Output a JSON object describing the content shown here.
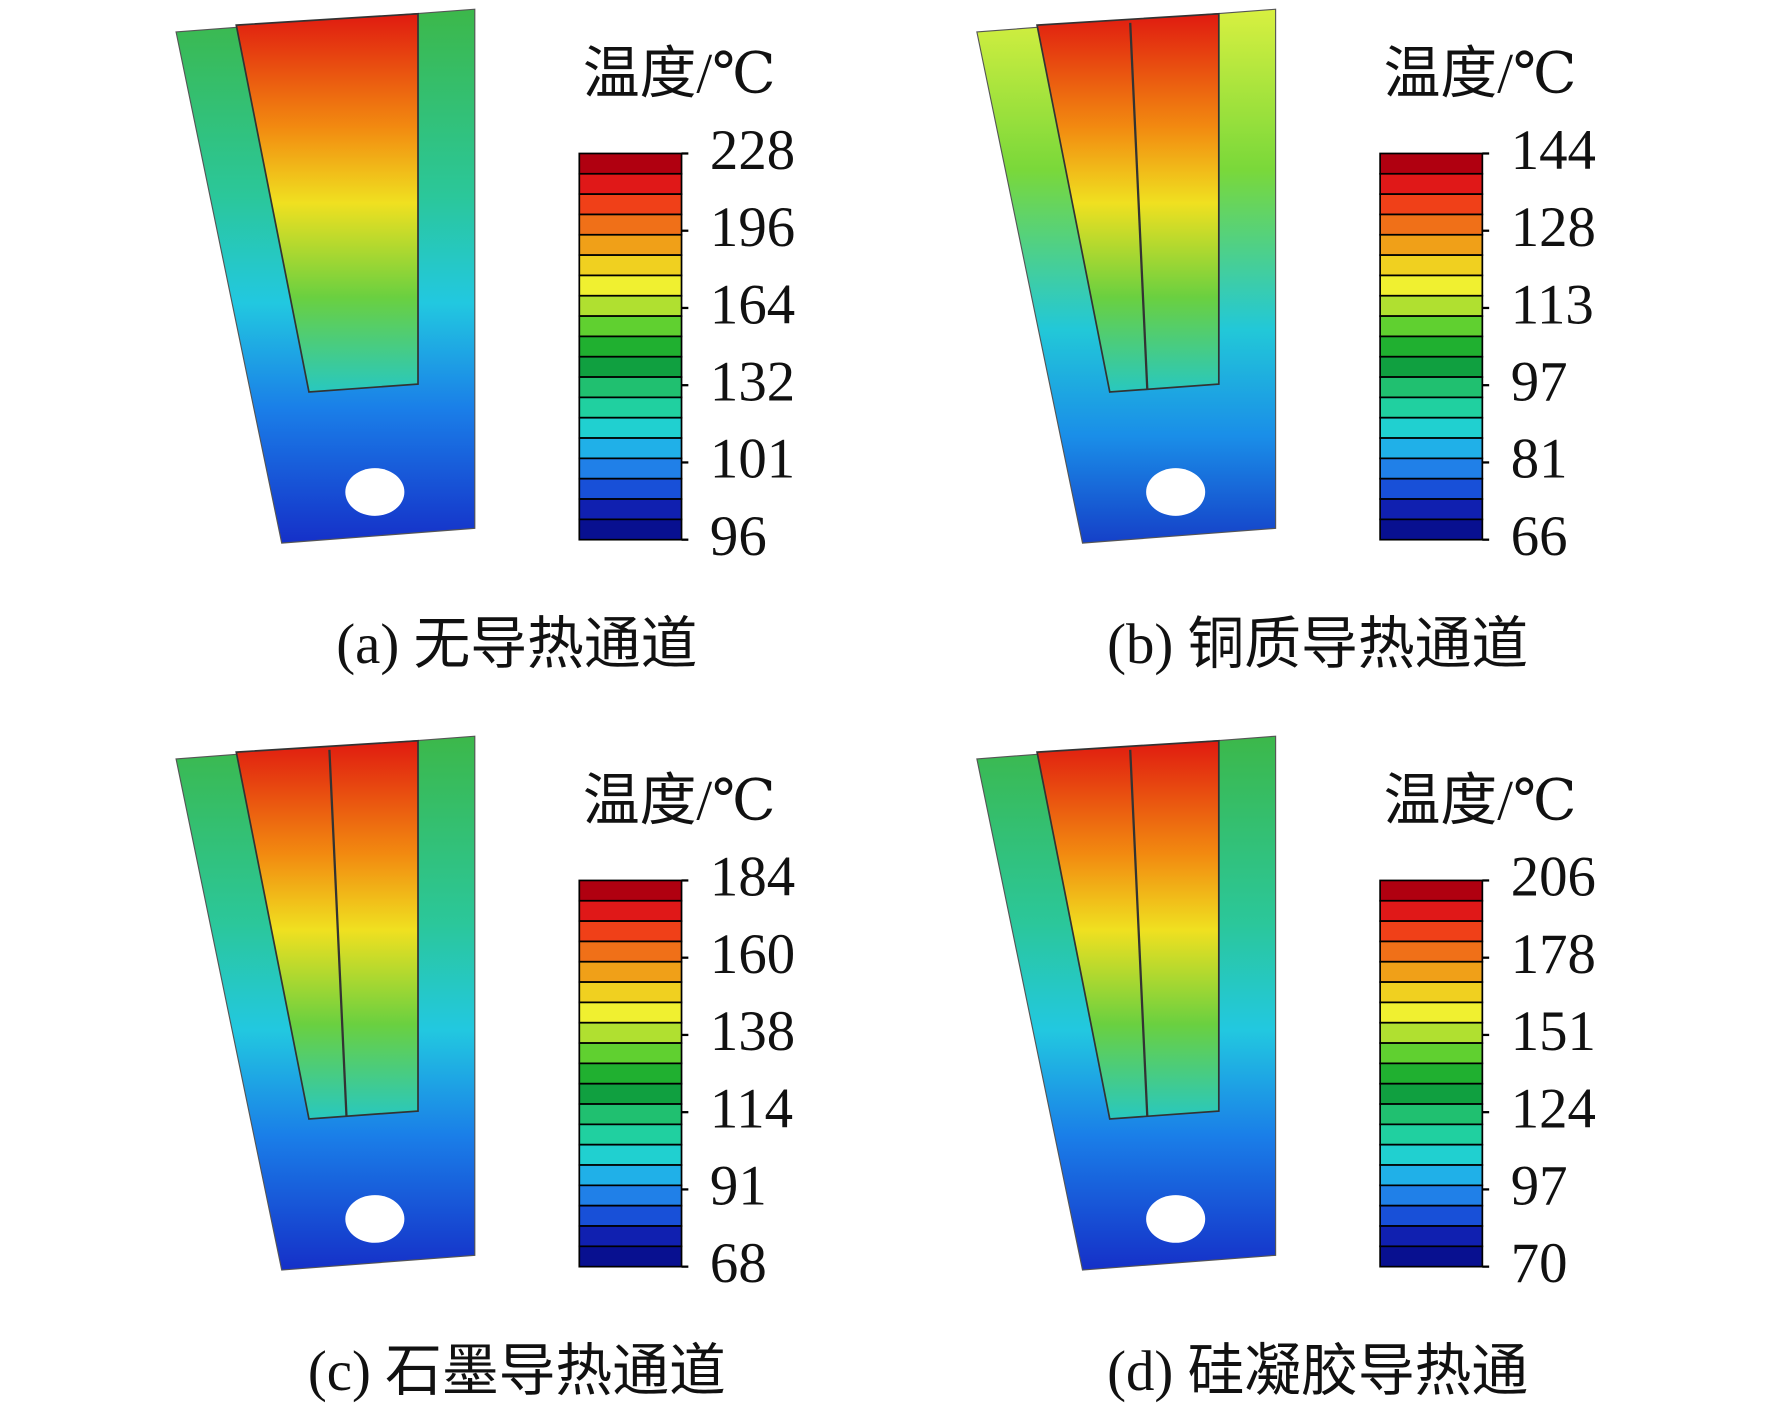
{
  "panels": [
    {
      "caption": "(a) 无导热通道",
      "colorbar_label": "温度/℃",
      "ticks": [
        228,
        196,
        164,
        132,
        101,
        96
      ]
    },
    {
      "caption": "(b) 铜质导热通道",
      "colorbar_label": "温度/℃",
      "ticks": [
        144,
        128,
        113,
        97,
        81,
        66
      ]
    },
    {
      "caption": "(c) 石墨导热通道",
      "colorbar_label": "温度/℃",
      "ticks": [
        184,
        160,
        138,
        114,
        91,
        68
      ]
    },
    {
      "caption": "(d) 硅凝胶导热通",
      "colorbar_label": "温度/℃",
      "ticks": [
        206,
        178,
        151,
        124,
        97,
        70
      ]
    }
  ]
}
